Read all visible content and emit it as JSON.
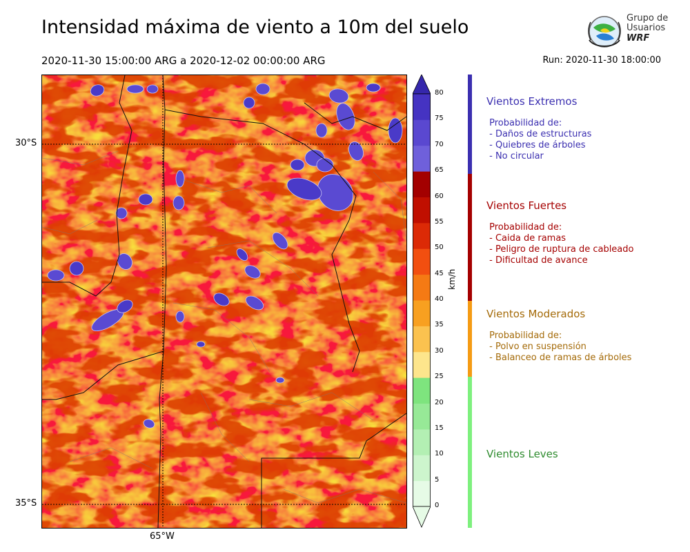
{
  "header": {
    "title": "Intensidad máxima de viento a 10m del suelo",
    "period": "2020-11-30 15:00:00 ARG  a  2020-12-02 00:00:00 ARG",
    "run": "Run: 2020-11-30 18:00:00"
  },
  "logo": {
    "line1": "Grupo de",
    "line2": "Usuarios",
    "line3": "WRF"
  },
  "map": {
    "lat_labels": [
      "30°S",
      "35°S"
    ],
    "lon_labels": [
      "65°W"
    ]
  },
  "colorbar": {
    "unit": "km/h",
    "ticks": [
      "0",
      "5",
      "10",
      "15",
      "20",
      "25",
      "30",
      "35",
      "40",
      "45",
      "50",
      "55",
      "60",
      "65",
      "70",
      "75",
      "80"
    ],
    "colors": [
      "#e6fbe6",
      "#cdf5cd",
      "#b3efb3",
      "#97e997",
      "#7ee47e",
      "#fde58c",
      "#fbc24f",
      "#f8a020",
      "#f57a14",
      "#f24f10",
      "#dc2a06",
      "#c00f00",
      "#a30000",
      "#6f60db",
      "#5a48d0",
      "#4533c2",
      "#3527ac"
    ]
  },
  "legend": [
    {
      "title": "Vientos Extremos",
      "desc": " Probabilidad de:\n - Daños de estructuras\n - Quiebres de árboles\n - No circular",
      "color": "#3b2fb0",
      "bar": "#3b2fb0"
    },
    {
      "title": "Vientos Fuertes",
      "desc": " Probabilidad de:\n - Caida de ramas\n - Peligro de ruptura de cableado\n - Dificultad de avance",
      "color": "#a50000",
      "bar": "#a50000"
    },
    {
      "title": "Vientos Moderados",
      "desc": " Probabilidad de:\n - Polvo en suspensión\n - Balanceo de ramas de árboles",
      "color": "#a46a08",
      "bar": "#f59b14"
    },
    {
      "title": "Vientos Leves",
      "desc": "",
      "color": "#2e8b2e",
      "bar": "#7ef07e"
    }
  ]
}
